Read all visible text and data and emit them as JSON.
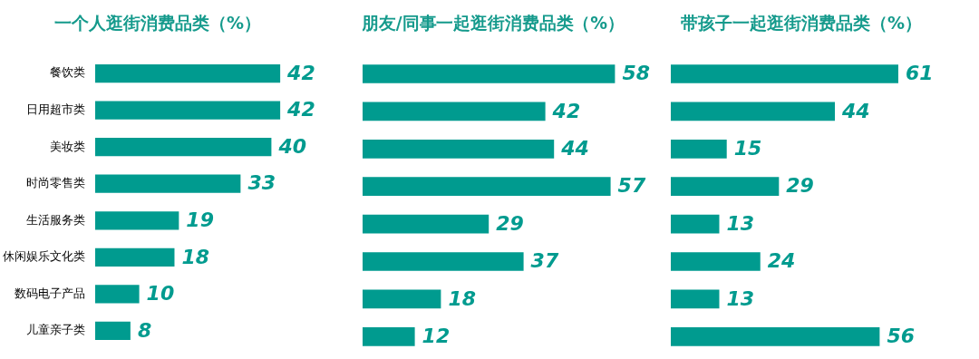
{
  "chart_data": [
    {
      "type": "bar",
      "orientation": "horizontal",
      "title": "一个人逛街消费品类（%）",
      "categories": [
        "餐饮类",
        "日用超市类",
        "美妆类",
        "时尚零售类",
        "生活服务类",
        "休闲娱乐文化类",
        "数码电子产品",
        "儿童亲子类"
      ],
      "values": [
        42,
        42,
        40,
        33,
        19,
        18,
        10,
        8
      ],
      "color": "#009b8f",
      "data_labels": true,
      "tick_labels": "y"
    },
    {
      "type": "bar",
      "orientation": "horizontal",
      "title": "朋友/同事一起逛街消费品类（%）",
      "categories": [
        null,
        null,
        null,
        null,
        null,
        null,
        null,
        null
      ],
      "values": [
        58,
        42,
        44,
        57,
        29,
        37,
        18,
        12
      ],
      "color": "#009b8f",
      "data_labels": true,
      "tick_labels": false
    },
    {
      "type": "bar",
      "orientation": "horizontal",
      "title": "带孩子一起逛街消费品类（%）",
      "categories": [
        null,
        null,
        null,
        null,
        null,
        null,
        null,
        null
      ],
      "values": [
        61,
        44,
        15,
        29,
        13,
        24,
        13,
        56
      ],
      "color": "#009b8f",
      "data_labels": true,
      "tick_labels": false
    }
  ]
}
